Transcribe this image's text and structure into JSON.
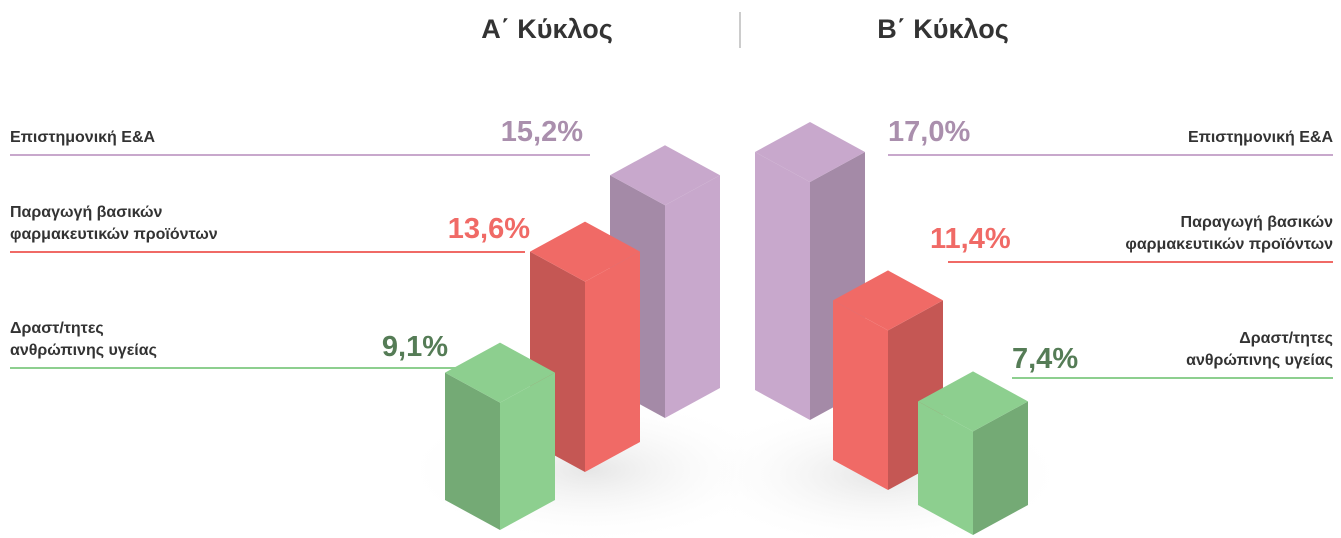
{
  "chart_data": [
    {
      "type": "bar",
      "title": "Α΄ Κύκλος",
      "categories": [
        "Επιστημονική Ε&Α",
        "Παραγωγή βασικών\nφαρμακευτικών προϊόντων",
        "Δραστ/τητες\nανθρώπινης υγείας"
      ],
      "values": [
        15.2,
        13.6,
        9.1
      ],
      "value_labels": [
        "15,2%",
        "13,6%",
        "9,1%"
      ],
      "colors": [
        "#c8a8cc",
        "#f06a66",
        "#8dcf8f"
      ]
    },
    {
      "type": "bar",
      "title": "Β΄ Κύκλος",
      "categories": [
        "Επιστημονική Ε&Α",
        "Παραγωγή βασικών\nφαρμακευτικών προϊόντων",
        "Δραστ/τητες\nανθρώπινης υγείας"
      ],
      "values": [
        17.0,
        11.4,
        7.4
      ],
      "value_labels": [
        "17,0%",
        "11,4%",
        "7,4%"
      ],
      "colors": [
        "#c8a8cc",
        "#f06a66",
        "#8dcf8f"
      ]
    }
  ]
}
